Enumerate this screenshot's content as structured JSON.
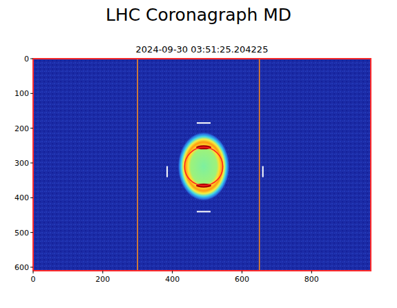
{
  "chart_data": {
    "type": "image",
    "title": "LHC Coronagraph MD",
    "subtitle": "2024-09-30 03:51:25.204225",
    "xlim": [
      0,
      970
    ],
    "ylim": [
      610,
      0
    ],
    "xticks": [
      0,
      200,
      400,
      600,
      800
    ],
    "yticks": [
      0,
      100,
      200,
      300,
      400,
      500,
      600
    ],
    "halo": {
      "x": 490,
      "y": 310,
      "rx": 75,
      "ry": 100
    },
    "hot_spots": {
      "x": [
        490,
        490
      ],
      "y": [
        255,
        365
      ]
    },
    "circle": {
      "x": 490,
      "y": 310,
      "r": 55,
      "color": "#ff2020"
    },
    "lines": {
      "x": [
        300,
        650
      ],
      "color": "#ff8c1a"
    },
    "h_markers": {
      "x": [
        490,
        490
      ],
      "y": [
        185,
        440
      ]
    },
    "v_markers": {
      "x": [
        385,
        660
      ],
      "y": [
        325,
        325
      ]
    }
  }
}
